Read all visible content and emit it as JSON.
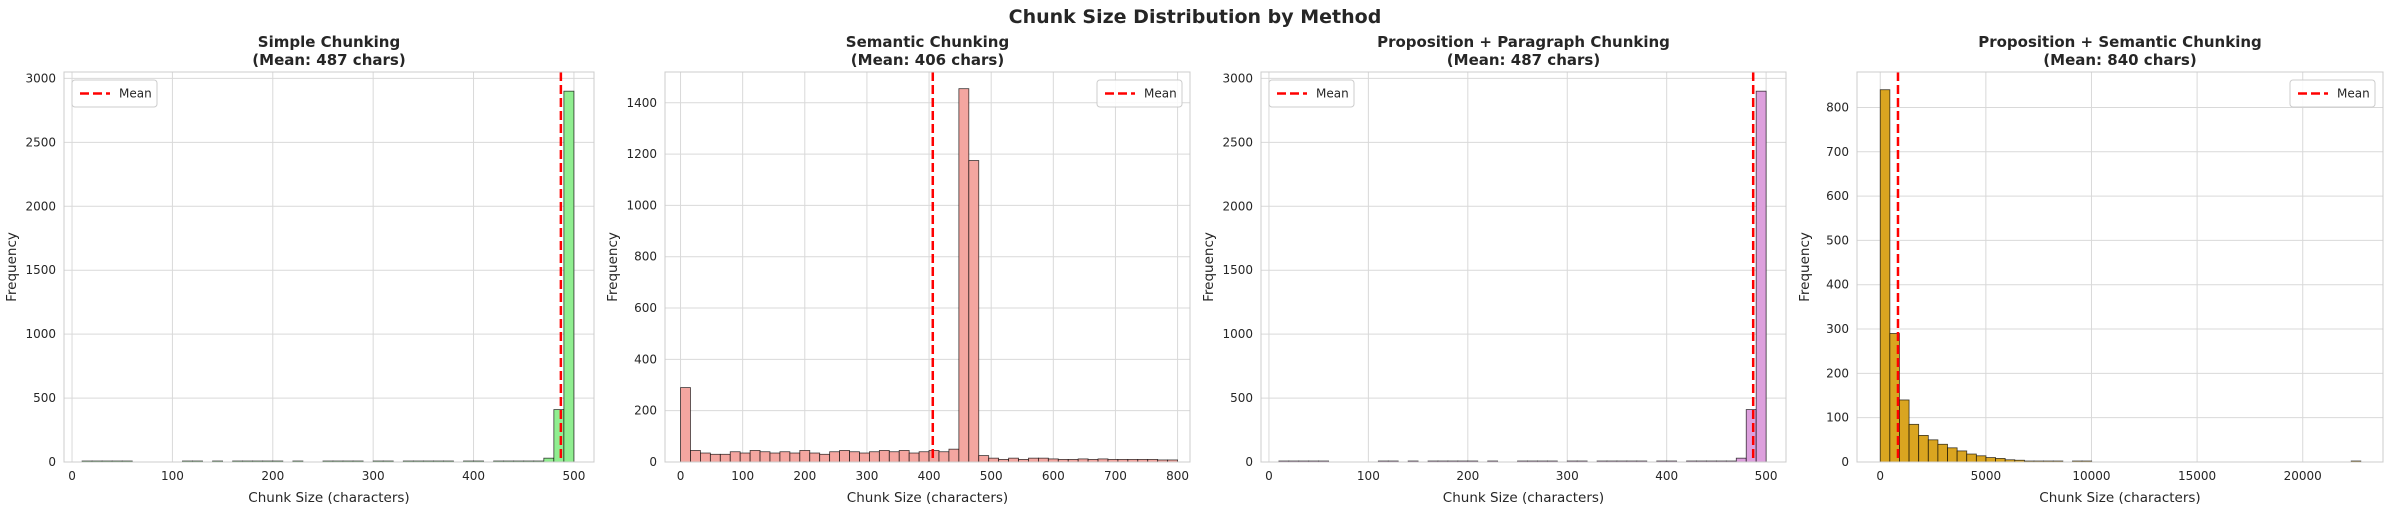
{
  "figure": {
    "title": "Chunk Size Distribution by Method"
  },
  "chart_data": [
    {
      "type": "bar",
      "title_line1": "Simple Chunking",
      "title_line2": "(Mean: 487 chars)",
      "xlabel": "Chunk Size (characters)",
      "ylabel": "Frequency",
      "xlim": [
        -8,
        520
      ],
      "ylim": [
        0,
        3050
      ],
      "xticks": [
        0,
        100,
        200,
        300,
        400,
        500
      ],
      "xtick_labels": [
        "0",
        "100",
        "200",
        "300",
        "400",
        "500"
      ],
      "yticks": [
        0,
        500,
        1000,
        1500,
        2000,
        2500,
        3000
      ],
      "ytick_labels": [
        "0",
        "500",
        "1000",
        "1500",
        "2000",
        "2500",
        "3000"
      ],
      "bin_start": 10,
      "bin_width": 10,
      "counts": [
        1,
        1,
        1,
        1,
        1,
        0,
        0,
        0,
        0,
        0,
        1,
        1,
        0,
        1,
        0,
        1,
        1,
        1,
        1,
        1,
        0,
        1,
        0,
        0,
        1,
        1,
        1,
        1,
        0,
        1,
        1,
        0,
        1,
        1,
        1,
        1,
        1,
        0,
        1,
        1,
        0,
        1,
        1,
        1,
        1,
        3,
        30,
        410,
        2900
      ],
      "bar_color": "#90ee90",
      "mean": 487,
      "legend": {
        "label": "Mean",
        "loc": "upper left"
      }
    },
    {
      "type": "bar",
      "title_line1": "Semantic Chunking",
      "title_line2": "(Mean: 406 chars)",
      "xlabel": "Chunk Size (characters)",
      "ylabel": "Frequency",
      "xlim": [
        -25,
        820
      ],
      "ylim": [
        0,
        1520
      ],
      "xticks": [
        0,
        100,
        200,
        300,
        400,
        500,
        600,
        700,
        800
      ],
      "xtick_labels": [
        "0",
        "100",
        "200",
        "300",
        "400",
        "500",
        "600",
        "700",
        "800"
      ],
      "yticks": [
        0,
        200,
        400,
        600,
        800,
        1000,
        1200,
        1400
      ],
      "ytick_labels": [
        "0",
        "200",
        "400",
        "600",
        "800",
        "1000",
        "1200",
        "1400"
      ],
      "bin_start": 0,
      "bin_width": 16,
      "counts": [
        290,
        45,
        35,
        30,
        30,
        40,
        35,
        45,
        40,
        35,
        40,
        35,
        45,
        35,
        30,
        40,
        45,
        40,
        35,
        40,
        45,
        40,
        45,
        35,
        40,
        45,
        40,
        50,
        1455,
        1175,
        25,
        15,
        10,
        15,
        10,
        15,
        15,
        12,
        10,
        10,
        12,
        10,
        12,
        10,
        10,
        10,
        10,
        10,
        8,
        8
      ],
      "bar_color": "#f4a6a0",
      "mean": 406,
      "legend": {
        "label": "Mean",
        "loc": "upper right"
      }
    },
    {
      "type": "bar",
      "title_line1": "Proposition + Paragraph Chunking",
      "title_line2": "(Mean: 487 chars)",
      "xlabel": "Chunk Size (characters)",
      "ylabel": "Frequency",
      "xlim": [
        -8,
        520
      ],
      "ylim": [
        0,
        3050
      ],
      "xticks": [
        0,
        100,
        200,
        300,
        400,
        500
      ],
      "xtick_labels": [
        "0",
        "100",
        "200",
        "300",
        "400",
        "500"
      ],
      "yticks": [
        0,
        500,
        1000,
        1500,
        2000,
        2500,
        3000
      ],
      "ytick_labels": [
        "0",
        "500",
        "1000",
        "1500",
        "2000",
        "2500",
        "3000"
      ],
      "bin_start": 10,
      "bin_width": 10,
      "counts": [
        1,
        1,
        1,
        1,
        1,
        0,
        0,
        0,
        0,
        0,
        1,
        1,
        0,
        1,
        0,
        1,
        1,
        1,
        1,
        1,
        0,
        1,
        0,
        0,
        1,
        1,
        1,
        1,
        0,
        1,
        1,
        0,
        1,
        1,
        1,
        1,
        1,
        0,
        1,
        1,
        0,
        1,
        1,
        1,
        1,
        3,
        30,
        410,
        2900
      ],
      "bar_color": "#dda0dd",
      "mean": 487,
      "legend": {
        "label": "Mean",
        "loc": "upper left"
      }
    },
    {
      "type": "bar",
      "title_line1": "Proposition + Semantic Chunking",
      "title_line2": "(Mean: 840 chars)",
      "xlabel": "Chunk Size (characters)",
      "ylabel": "Frequency",
      "xlim": [
        -1100,
        23800
      ],
      "ylim": [
        0,
        880
      ],
      "xticks": [
        0,
        5000,
        10000,
        15000,
        20000
      ],
      "xtick_labels": [
        "0",
        "5000",
        "10000",
        "15000",
        "20000"
      ],
      "yticks": [
        0,
        100,
        200,
        300,
        400,
        500,
        600,
        700,
        800
      ],
      "ytick_labels": [
        "0",
        "100",
        "200",
        "300",
        "400",
        "500",
        "600",
        "700",
        "800"
      ],
      "bin_start": 0,
      "bin_width": 455,
      "counts": [
        840,
        290,
        140,
        85,
        60,
        50,
        40,
        32,
        25,
        18,
        14,
        10,
        8,
        5,
        4,
        2,
        1,
        1,
        1,
        0,
        1,
        1,
        0,
        0,
        0,
        0,
        0,
        0,
        0,
        0,
        0,
        0,
        0,
        0,
        0,
        0,
        0,
        0,
        0,
        0,
        0,
        0,
        0,
        0,
        0,
        0,
        0,
        0,
        0,
        1
      ],
      "bar_color": "#daa520",
      "mean": 840,
      "legend": {
        "label": "Mean",
        "loc": "upper right"
      }
    }
  ]
}
